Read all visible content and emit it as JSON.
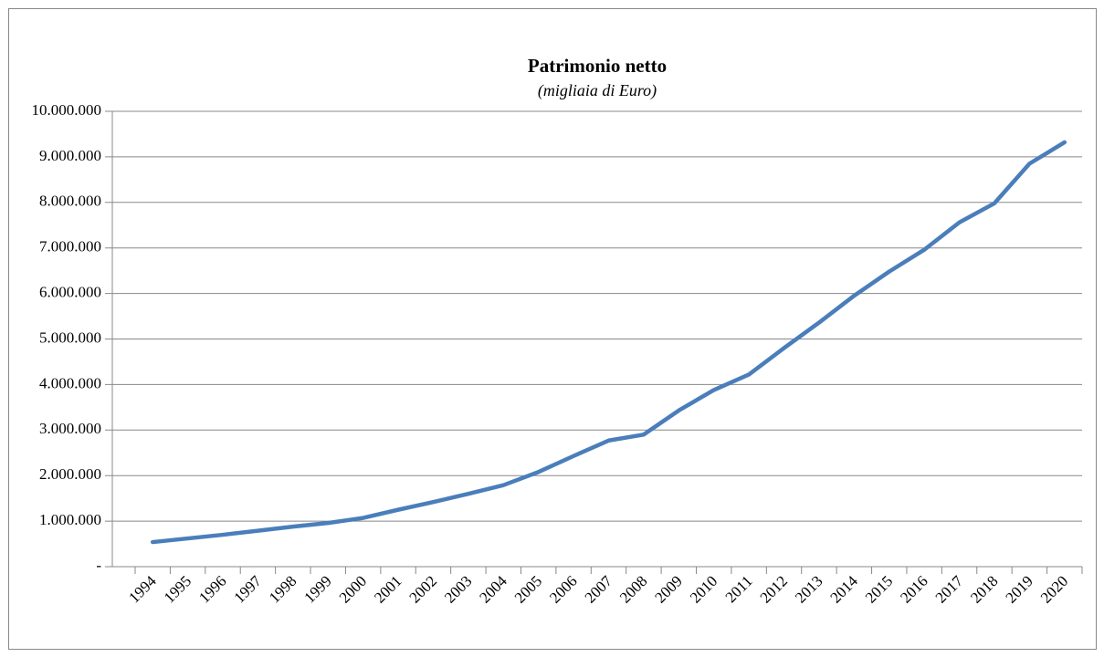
{
  "chart_data": {
    "type": "line",
    "title": "Patrimonio netto",
    "subtitle": "(migliaia di Euro)",
    "categories": [
      "1994",
      "1995",
      "1996",
      "1997",
      "1998",
      "1999",
      "2000",
      "2001",
      "2002",
      "2003",
      "2004",
      "2005",
      "2006",
      "2007",
      "2008",
      "2009",
      "2010",
      "2011",
      "2012",
      "2013",
      "2014",
      "2015",
      "2016",
      "2017",
      "2018",
      "2019",
      "2020"
    ],
    "values": [
      540000,
      620000,
      700000,
      790000,
      880000,
      960000,
      1070000,
      1250000,
      1420000,
      1600000,
      1790000,
      2080000,
      2430000,
      2770000,
      2900000,
      3430000,
      3880000,
      4220000,
      4800000,
      5360000,
      5950000,
      6480000,
      6960000,
      7560000,
      7980000,
      8850000,
      9320000
    ],
    "color": "#4a7ebb",
    "ylim": [
      0,
      10000000
    ],
    "yticks": [
      {
        "value": 0,
        "label": "-"
      },
      {
        "value": 1000000,
        "label": "1.000.000"
      },
      {
        "value": 2000000,
        "label": "2.000.000"
      },
      {
        "value": 3000000,
        "label": "3.000.000"
      },
      {
        "value": 4000000,
        "label": "4.000.000"
      },
      {
        "value": 5000000,
        "label": "5.000.000"
      },
      {
        "value": 6000000,
        "label": "6.000.000"
      },
      {
        "value": 7000000,
        "label": "7.000.000"
      },
      {
        "value": 8000000,
        "label": "8.000.000"
      },
      {
        "value": 9000000,
        "label": "9.000.000"
      },
      {
        "value": 10000000,
        "label": "10.000.000"
      }
    ],
    "grid": true
  }
}
